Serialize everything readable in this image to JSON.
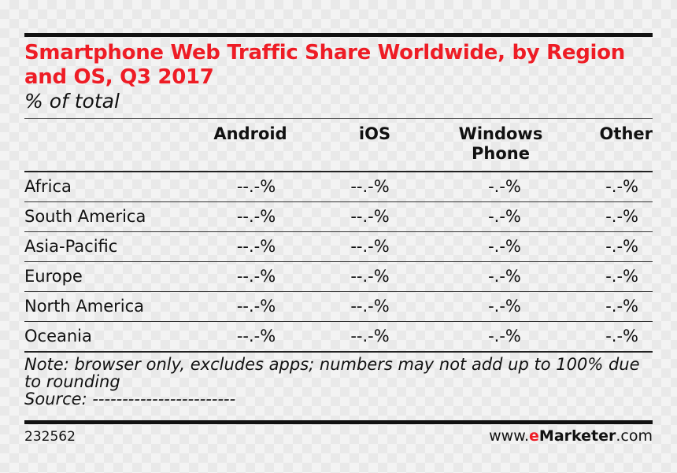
{
  "chart_data": {
    "type": "table",
    "title": "Smartphone Web Traffic Share Worldwide, by Region and OS, Q3 2017",
    "subtitle": "% of total",
    "columns": [
      "Android",
      "iOS",
      "Windows Phone",
      "Other"
    ],
    "columns_display": [
      "Android",
      "iOS",
      "Windows\nPhone",
      "Other"
    ],
    "rows": [
      {
        "region": "Africa",
        "values": [
          "--.-%",
          "--.-%",
          "-.-%",
          "-.-%"
        ]
      },
      {
        "region": "South America",
        "values": [
          "--.-%",
          "--.-%",
          "-.-%",
          "-.-%"
        ]
      },
      {
        "region": "Asia-Pacific",
        "values": [
          "--.-%",
          "--.-%",
          "-.-%",
          "-.-%"
        ]
      },
      {
        "region": "Europe",
        "values": [
          "--.-%",
          "--.-%",
          "-.-%",
          "-.-%"
        ]
      },
      {
        "region": "North America",
        "values": [
          "--.-%",
          "--.-%",
          "-.-%",
          "-.-%"
        ]
      },
      {
        "region": "Oceania",
        "values": [
          "--.-%",
          "--.-%",
          "-.-%",
          "-.-%"
        ]
      }
    ],
    "note": "Note: browser only, excludes apps; numbers may not add up to 100% due to rounding",
    "source": "Source: ------------------------"
  },
  "footer": {
    "chart_id": "232562",
    "brand_prefix": "www.",
    "brand_e": "e",
    "brand_name": "Marketer",
    "brand_suffix": ".com"
  },
  "colors": {
    "title": "#ee1c25",
    "text": "#111111",
    "rules": "#111111"
  }
}
